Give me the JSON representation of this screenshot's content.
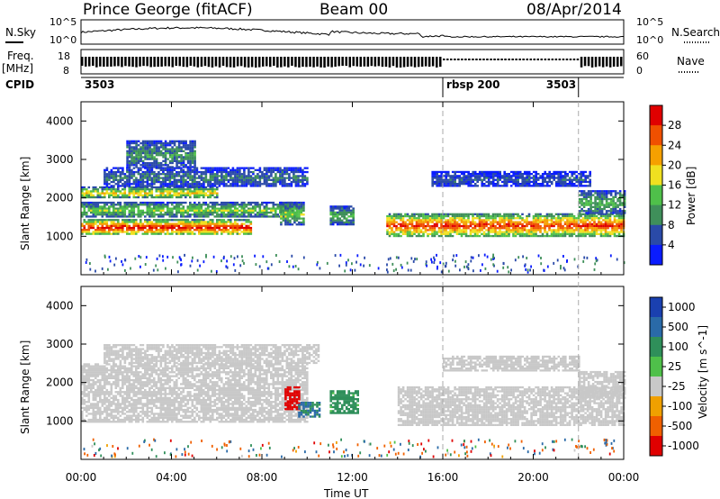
{
  "header": {
    "station": "Prince George (fitACF)",
    "beam": "Beam 00",
    "date": "08/Apr/2014"
  },
  "left_labels": {
    "nsky": "N.Sky",
    "freq": "Freq.",
    "freq_unit": "[MHz]",
    "cpid": "CPID"
  },
  "right_labels": {
    "nsearch": "N.Search",
    "nave": "Nave"
  },
  "noise_panel": {
    "ticks_left": [
      "10^5",
      "10^0"
    ],
    "ticks_right": [
      "10^5",
      "10^0"
    ]
  },
  "freq_panel": {
    "ticks_left": [
      "18",
      "8"
    ],
    "ticks_right": [
      "60",
      "0"
    ]
  },
  "cpid_segments": [
    {
      "label": "3503",
      "start_hour": 0
    },
    {
      "label": "rbsp 200",
      "start_hour": 16
    },
    {
      "label": "3503",
      "start_hour": 22
    }
  ],
  "range_ticks": [
    "4000",
    "3000",
    "2000",
    "1000"
  ],
  "range_label": "Slant Range [km]",
  "time_ticks": [
    "00:00",
    "04:00",
    "08:00",
    "12:00",
    "16:00",
    "20:00",
    "00:00"
  ],
  "time_label": "Time UT",
  "power_colorbar": {
    "ticks": [
      "28",
      "24",
      "20",
      "16",
      "12",
      "8",
      "4"
    ],
    "label": "Power [dB]"
  },
  "velocity_colorbar": {
    "ticks": [
      "1000",
      "500",
      "100",
      "25",
      "-25",
      "-100",
      "-500",
      "-1000"
    ],
    "label": "Velocity [m s^-1]"
  },
  "colors": {
    "power_scale": [
      "#0a1cff",
      "#2a4aa8",
      "#3f8f5a",
      "#4fc04a",
      "#f0e020",
      "#f5a000",
      "#f05000",
      "#e00000"
    ],
    "velocity_scale": [
      "#1a40b0",
      "#2a6aa8",
      "#2f8f5a",
      "#4fc04a",
      "#c8c8c8",
      "#f0a000",
      "#f06000",
      "#e00000"
    ],
    "ground_scatter": "#c8c8c8"
  },
  "chart_data": {
    "type": "heatmap",
    "x_range_hours": [
      0,
      24
    ],
    "y_range_km": [
      0,
      4500
    ],
    "ylim_km": [
      0,
      4500
    ],
    "mode_change_hours": [
      16,
      22
    ],
    "power_echo_bands": [
      {
        "t0": 0.0,
        "t1": 7.5,
        "r0": 1050,
        "r1": 1450,
        "power_db": 28
      },
      {
        "t0": 0.0,
        "t1": 9.5,
        "r0": 1500,
        "r1": 1900,
        "power_db": 14
      },
      {
        "t0": 0.0,
        "t1": 6.0,
        "r0": 2000,
        "r1": 2300,
        "power_db": 18
      },
      {
        "t0": 1.0,
        "t1": 10.0,
        "r0": 2300,
        "r1": 2800,
        "power_db": 8
      },
      {
        "t0": 2.0,
        "t1": 5.0,
        "r0": 2800,
        "r1": 3500,
        "power_db": 10
      },
      {
        "t0": 8.8,
        "t1": 9.8,
        "r0": 1300,
        "r1": 1900,
        "power_db": 14
      },
      {
        "t0": 11.0,
        "t1": 12.0,
        "r0": 1300,
        "r1": 1800,
        "power_db": 12
      },
      {
        "t0": 13.5,
        "t1": 24.0,
        "r0": 1000,
        "r1": 1600,
        "power_db": 26
      },
      {
        "t0": 15.5,
        "t1": 22.5,
        "r0": 2300,
        "r1": 2700,
        "power_db": 6
      },
      {
        "t0": 22.0,
        "t1": 24.0,
        "r0": 1600,
        "r1": 2200,
        "power_db": 12
      }
    ],
    "velocity_echo_bands": [
      {
        "t0": 0.0,
        "t1": 10.0,
        "r0": 1000,
        "r1": 2500,
        "velocity": 0
      },
      {
        "t0": 1.0,
        "t1": 10.5,
        "r0": 2500,
        "r1": 3000,
        "velocity": 0
      },
      {
        "t0": 9.0,
        "t1": 9.6,
        "r0": 1300,
        "r1": 1900,
        "velocity": -800
      },
      {
        "t0": 9.6,
        "t1": 10.5,
        "r0": 1100,
        "r1": 1500,
        "velocity": 300
      },
      {
        "t0": 11.0,
        "t1": 12.2,
        "r0": 1200,
        "r1": 1800,
        "velocity": 150
      },
      {
        "t0": 14.0,
        "t1": 24.0,
        "r0": 900,
        "r1": 1900,
        "velocity": 0
      },
      {
        "t0": 16.0,
        "t1": 22.0,
        "r0": 2300,
        "r1": 2700,
        "velocity": 0
      },
      {
        "t0": 22.0,
        "t1": 24.0,
        "r0": 1600,
        "r1": 2300,
        "velocity": 0
      }
    ]
  }
}
